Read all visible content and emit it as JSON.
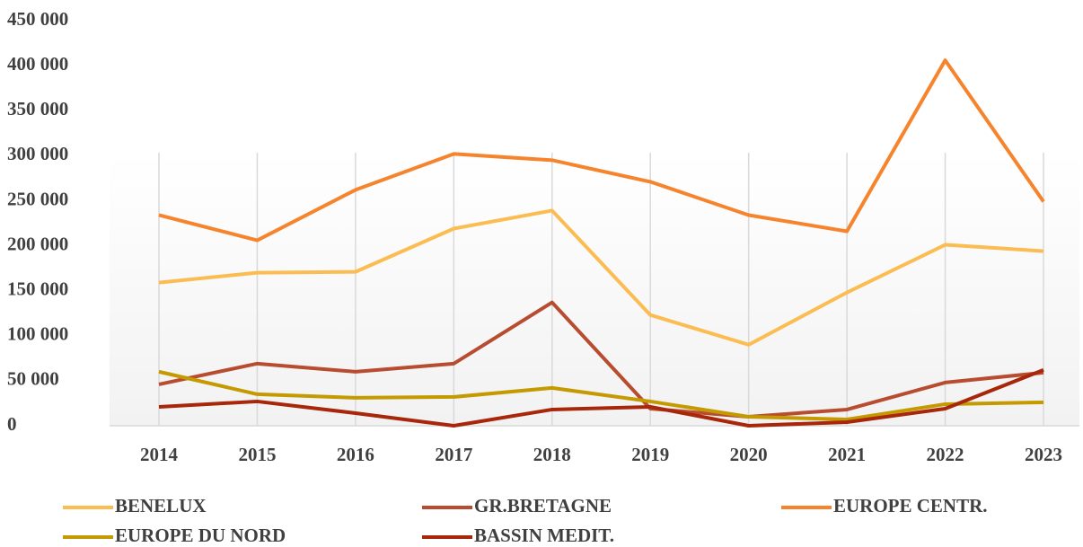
{
  "chart_data": {
    "type": "line",
    "categories": [
      "2014",
      "2015",
      "2016",
      "2017",
      "2018",
      "2019",
      "2020",
      "2021",
      "2022",
      "2023"
    ],
    "series": [
      {
        "name": "BENELUX",
        "color": "#fbbc52",
        "values": [
          159000,
          170000,
          171000,
          219000,
          239000,
          123000,
          90000,
          148000,
          201000,
          194000
        ]
      },
      {
        "name": "GR.BRETAGNE",
        "color": "#b84c30",
        "values": [
          46000,
          69000,
          60000,
          69000,
          137000,
          19000,
          10000,
          18000,
          48000,
          59000
        ]
      },
      {
        "name": "EUROPE CENTR.",
        "color": "#f5842c",
        "values": [
          234000,
          206000,
          262000,
          302000,
          295000,
          271000,
          234000,
          216000,
          406000,
          249000
        ]
      },
      {
        "name": "EUROPE DU NORD",
        "color": "#c49a00",
        "values": [
          60000,
          35000,
          31000,
          32000,
          42000,
          27000,
          10000,
          7000,
          24000,
          26000
        ]
      },
      {
        "name": "BASSIN MEDIT.",
        "color": "#a8260a",
        "values": [
          21000,
          27000,
          14000,
          0,
          18000,
          21000,
          0,
          4000,
          19000,
          62000
        ]
      }
    ],
    "ylim": [
      0,
      450000
    ],
    "yticks": [
      0,
      {
        "value": 50000,
        "label": "50 000"
      },
      {
        "value": 100000,
        "label": "100 000"
      },
      {
        "value": 150000,
        "label": "150 000"
      },
      {
        "value": 200000,
        "label": "200 000"
      },
      {
        "value": 250000,
        "label": "250 000"
      },
      {
        "value": 300000,
        "label": "300 000"
      },
      {
        "value": 350000,
        "label": "350 000"
      },
      {
        "value": 400000,
        "label": "400 000"
      },
      {
        "value": 450000,
        "label": "450 000"
      }
    ],
    "grid": true
  }
}
